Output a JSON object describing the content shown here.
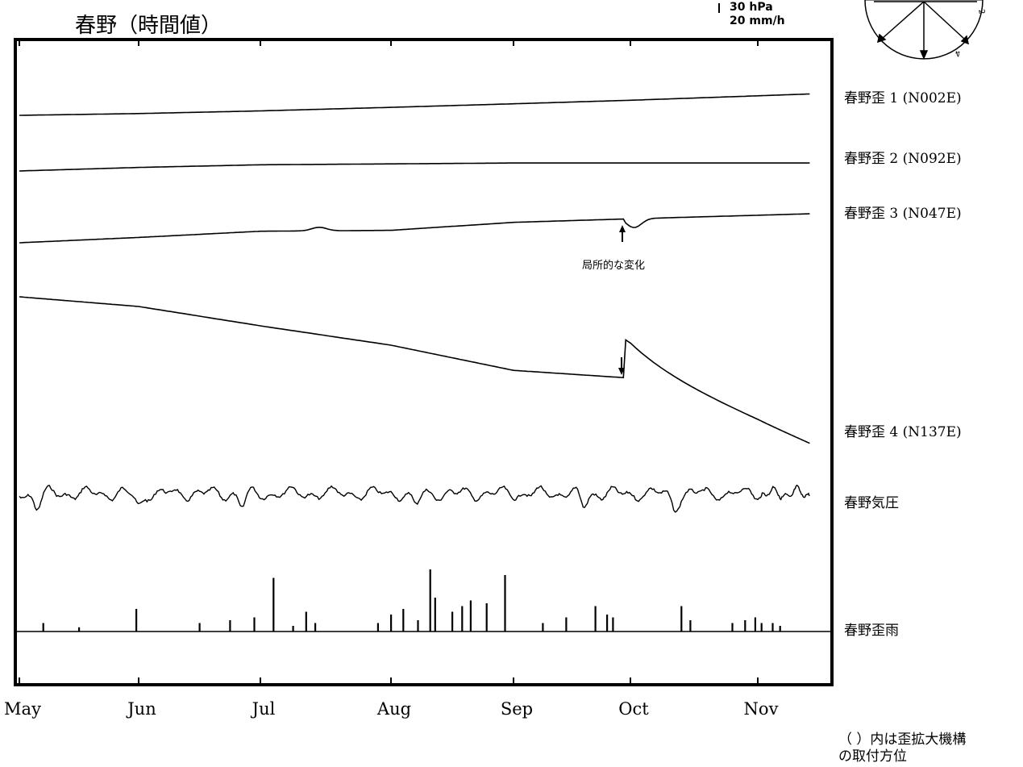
{
  "title": "春野（時間値）",
  "scale": {
    "pressure": "30 hPa",
    "rain": "20 mm/h"
  },
  "compass_labels": [
    "2",
    "4"
  ],
  "months": [
    "May",
    "Jun",
    "Jul",
    "Aug",
    "Sep",
    "Oct",
    "Nov"
  ],
  "note": "（ ）内は歪拡大機構の取付方位",
  "note_line1": "（ ）内は歪拡大機構",
  "note_line2": "の取付方位",
  "event_label": "局所的な変化",
  "chart_data": {
    "type": "line",
    "title": "春野（時間値）",
    "x_axis": {
      "unit": "month",
      "ticks": [
        "May",
        "Jun",
        "Jul",
        "Aug",
        "Sep",
        "Oct",
        "Nov"
      ],
      "range": [
        "May 1",
        "Nov 30"
      ]
    },
    "grid": false,
    "series": [
      {
        "name": "春野歪 1 (N002E)",
        "level": [
          0.0,
          0.02,
          0.05,
          0.09,
          0.13,
          0.17,
          0.22
        ],
        "events": []
      },
      {
        "name": "春野歪 2 (N092E)",
        "level": [
          0.0,
          0.04,
          0.07,
          0.08,
          0.09,
          0.09,
          0.09
        ],
        "events": []
      },
      {
        "name": "春野歪 3 (N047E)",
        "level": [
          0.0,
          0.06,
          0.13,
          0.14,
          0.23,
          0.27,
          0.31
        ],
        "events": [
          {
            "month": 4.95,
            "type": "dip"
          }
        ]
      },
      {
        "name": "春野歪 4 (N137E)",
        "level": [
          0.0,
          -0.1,
          -0.3,
          -0.5,
          -0.76,
          -0.84,
          -1.4
        ],
        "events": [
          {
            "month": 4.95,
            "type": "step-up"
          }
        ]
      },
      {
        "name": "春野気圧",
        "unit": "hPa",
        "scale_bar": "30 hPa"
      },
      {
        "name": "春野歪雨",
        "unit": "mm/h",
        "scale_bar": "20 mm/h",
        "spikes": [
          {
            "month": 0.2,
            "mm_h": 3
          },
          {
            "month": 0.5,
            "mm_h": 1.5
          },
          {
            "month": 0.98,
            "mm_h": 8
          },
          {
            "month": 1.5,
            "mm_h": 3
          },
          {
            "month": 1.75,
            "mm_h": 4
          },
          {
            "month": 1.95,
            "mm_h": 5
          },
          {
            "month": 2.1,
            "mm_h": 19
          },
          {
            "month": 2.25,
            "mm_h": 2
          },
          {
            "month": 2.35,
            "mm_h": 7
          },
          {
            "month": 2.42,
            "mm_h": 3
          },
          {
            "month": 2.9,
            "mm_h": 3
          },
          {
            "month": 3.0,
            "mm_h": 6
          },
          {
            "month": 3.1,
            "mm_h": 8
          },
          {
            "month": 3.22,
            "mm_h": 4
          },
          {
            "month": 3.32,
            "mm_h": 22
          },
          {
            "month": 3.36,
            "mm_h": 12
          },
          {
            "month": 3.5,
            "mm_h": 7
          },
          {
            "month": 3.58,
            "mm_h": 9
          },
          {
            "month": 3.65,
            "mm_h": 11
          },
          {
            "month": 3.78,
            "mm_h": 10
          },
          {
            "month": 3.93,
            "mm_h": 20
          },
          {
            "month": 4.25,
            "mm_h": 3
          },
          {
            "month": 4.45,
            "mm_h": 5
          },
          {
            "month": 4.7,
            "mm_h": 9
          },
          {
            "month": 4.8,
            "mm_h": 6
          },
          {
            "month": 4.85,
            "mm_h": 5
          },
          {
            "month": 5.4,
            "mm_h": 9
          },
          {
            "month": 5.47,
            "mm_h": 4
          },
          {
            "month": 5.8,
            "mm_h": 3
          },
          {
            "month": 5.9,
            "mm_h": 4
          },
          {
            "month": 5.98,
            "mm_h": 5
          },
          {
            "month": 6.05,
            "mm_h": 3
          },
          {
            "month": 6.2,
            "mm_h": 3
          },
          {
            "month": 6.3,
            "mm_h": 2
          }
        ]
      }
    ]
  }
}
